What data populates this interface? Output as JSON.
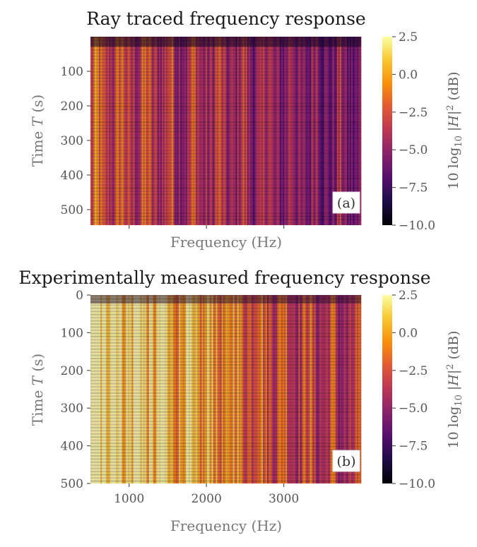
{
  "chart_data": [
    {
      "type": "heatmap",
      "title": "Ray traced frequency response",
      "xlabel": "Frequency (Hz)",
      "ylabel": "Time T (s)",
      "xlim": [
        500,
        4000
      ],
      "ylim": [
        545,
        0
      ],
      "x_ticks": [
        1000,
        2000,
        3000
      ],
      "x_tick_labels": [
        "",
        "",
        ""
      ],
      "y_ticks": [
        100,
        200,
        300,
        400,
        500
      ],
      "y_tick_labels": [
        "100",
        "200",
        "300",
        "400",
        "500"
      ],
      "panel_label": "(a)",
      "colorbar": {
        "label": "10 log10 |H|^2 (dB)",
        "range": [
          -10.0,
          2.5
        ],
        "ticks": [
          2.5,
          0.0,
          -2.5,
          -5.0,
          -7.5,
          -10.0
        ],
        "tick_labels": [
          "2.5",
          "0.0",
          "−2.5",
          "−5.0",
          "−7.5",
          "−10.0"
        ],
        "colormap": "inferno"
      }
    },
    {
      "type": "heatmap",
      "title": "Experimentally measured frequency response",
      "xlabel": "Frequency (Hz)",
      "ylabel": "Time T (s)",
      "xlim": [
        500,
        4000
      ],
      "ylim": [
        500,
        0
      ],
      "x_ticks": [
        1000,
        2000,
        3000
      ],
      "x_tick_labels": [
        "1000",
        "2000",
        "3000"
      ],
      "y_ticks": [
        0,
        100,
        200,
        300,
        400,
        500
      ],
      "y_tick_labels": [
        "0",
        "100",
        "200",
        "300",
        "400",
        "500"
      ],
      "panel_label": "(b)",
      "colorbar": {
        "label": "10 log10 |H|^2 (dB)",
        "range": [
          -10.0,
          2.5
        ],
        "ticks": [
          2.5,
          0.0,
          -2.5,
          -5.0,
          -7.5,
          -10.0
        ],
        "tick_labels": [
          "2.5",
          "0.0",
          "−2.5",
          "−5.0",
          "−7.5",
          "−10.0"
        ],
        "colormap": "inferno"
      }
    }
  ]
}
